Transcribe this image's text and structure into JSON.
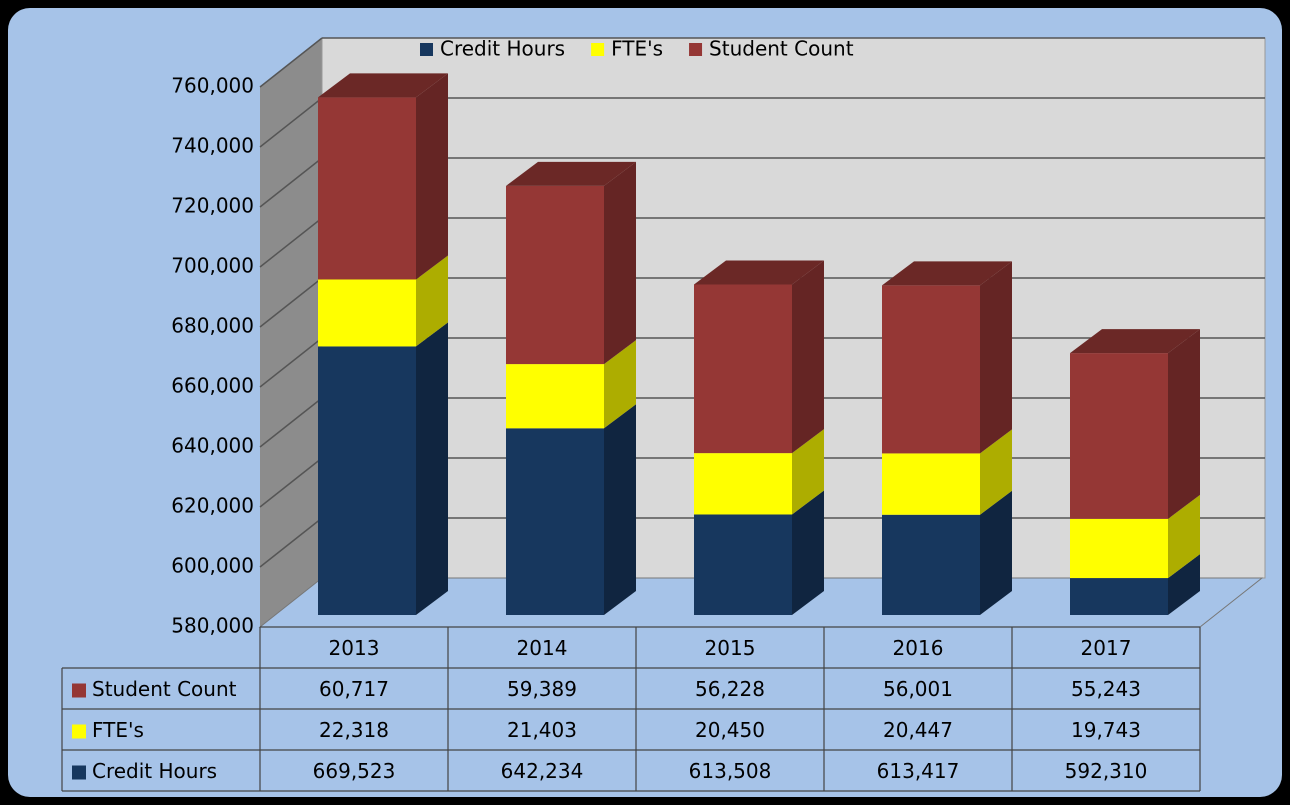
{
  "chart_data": {
    "type": "bar3d_stacked",
    "categories": [
      "2013",
      "2014",
      "2015",
      "2016",
      "2017"
    ],
    "series": [
      {
        "name": "Credit Hours",
        "color": "#17375e",
        "values": [
          669523,
          642234,
          613508,
          613417,
          592310
        ],
        "value_labels": [
          "669,523",
          "642,234",
          "613,508",
          "613,417",
          "592,310"
        ]
      },
      {
        "name": "FTE's",
        "color": "#ffff00",
        "values": [
          22318,
          21403,
          20450,
          20447,
          19743
        ],
        "value_labels": [
          "22,318",
          "21,403",
          "20,450",
          "20,447",
          "19,743"
        ]
      },
      {
        "name": "Student Count",
        "color": "#953735",
        "values": [
          60717,
          59389,
          56228,
          56001,
          55243
        ],
        "value_labels": [
          "60,717",
          "59,389",
          "56,228",
          "56,001",
          "55,243"
        ]
      }
    ],
    "ylim": [
      580000,
      760000
    ],
    "yticks": [
      {
        "value": 580000,
        "label": "580,000"
      },
      {
        "value": 600000,
        "label": "600,000"
      },
      {
        "value": 620000,
        "label": "620,000"
      },
      {
        "value": 640000,
        "label": "640,000"
      },
      {
        "value": 660000,
        "label": "660,000"
      },
      {
        "value": 680000,
        "label": "680,000"
      },
      {
        "value": 700000,
        "label": "700,000"
      },
      {
        "value": 720000,
        "label": "720,000"
      },
      {
        "value": 740000,
        "label": "740,000"
      },
      {
        "value": 760000,
        "label": "760,000"
      }
    ],
    "grid": true,
    "legend": "top",
    "stacked": true
  }
}
